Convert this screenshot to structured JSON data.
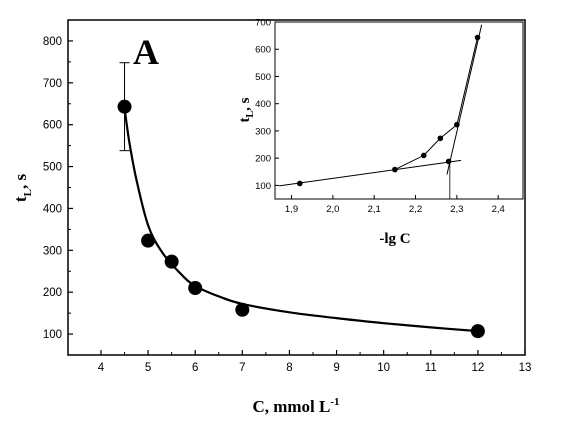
{
  "chart_data": [
    {
      "type": "scatter",
      "panel_label": "A",
      "xlabel": {
        "main": "C, mmol L",
        "sup": "-1"
      },
      "ylabel": {
        "main": "t",
        "sub": "L",
        "tail": ", s"
      },
      "xlim": [
        3.3,
        13
      ],
      "ylim": [
        50,
        850
      ],
      "xticks": [
        4,
        5,
        6,
        7,
        8,
        9,
        10,
        11,
        12,
        13
      ],
      "yticks": [
        100,
        200,
        300,
        400,
        500,
        600,
        700,
        800
      ],
      "points": [
        {
          "x": 4.5,
          "y": 643
        },
        {
          "x": 5.0,
          "y": 323
        },
        {
          "x": 5.5,
          "y": 273
        },
        {
          "x": 6.0,
          "y": 210
        },
        {
          "x": 7.0,
          "y": 158
        },
        {
          "x": 12.0,
          "y": 107
        }
      ],
      "error_bar": {
        "x": 4.5,
        "y": 643,
        "low": 538,
        "high": 748
      },
      "fit_curve": [
        {
          "x": 4.5,
          "y": 640
        },
        {
          "x": 4.6,
          "y": 560
        },
        {
          "x": 4.75,
          "y": 470
        },
        {
          "x": 5.0,
          "y": 360
        },
        {
          "x": 5.3,
          "y": 295
        },
        {
          "x": 5.7,
          "y": 243
        },
        {
          "x": 6.0,
          "y": 215
        },
        {
          "x": 6.5,
          "y": 190
        },
        {
          "x": 7.0,
          "y": 172
        },
        {
          "x": 8.0,
          "y": 152
        },
        {
          "x": 9.0,
          "y": 138
        },
        {
          "x": 10.0,
          "y": 126
        },
        {
          "x": 11.0,
          "y": 116
        },
        {
          "x": 12.0,
          "y": 107
        }
      ],
      "grid": false,
      "legend": "none"
    },
    {
      "type": "scatter",
      "role": "inset",
      "xlabel": "-lg C",
      "ylabel": {
        "main": "t",
        "sub": "L",
        "tail": ", s"
      },
      "xlim": [
        1.86,
        2.46
      ],
      "ylim": [
        50,
        700
      ],
      "xticks": [
        "1,9",
        "2,0",
        "2,1",
        "2,2",
        "2,3",
        "2,4"
      ],
      "xtick_values": [
        1.9,
        2.0,
        2.1,
        2.2,
        2.3,
        2.4
      ],
      "yticks": [
        100,
        200,
        300,
        400,
        500,
        600,
        700
      ],
      "points": [
        {
          "x": 1.92,
          "y": 107
        },
        {
          "x": 2.15,
          "y": 158
        },
        {
          "x": 2.22,
          "y": 210
        },
        {
          "x": 2.26,
          "y": 273
        },
        {
          "x": 2.28,
          "y": 188
        },
        {
          "x": 2.3,
          "y": 323
        },
        {
          "x": 2.35,
          "y": 643
        }
      ],
      "connecting_line": [
        {
          "x": 2.15,
          "y": 158
        },
        {
          "x": 2.22,
          "y": 210
        },
        {
          "x": 2.26,
          "y": 273
        },
        {
          "x": 2.3,
          "y": 323
        },
        {
          "x": 2.35,
          "y": 643
        }
      ],
      "fit_lines": [
        {
          "from": {
            "x": 1.87,
            "y": 98
          },
          "to": {
            "x": 2.31,
            "y": 192
          }
        },
        {
          "from": {
            "x": 2.276,
            "y": 140
          },
          "to": {
            "x": 2.36,
            "y": 690
          }
        }
      ],
      "intersection_marker": {
        "x": 2.283
      },
      "grid": false,
      "legend": "none"
    }
  ]
}
